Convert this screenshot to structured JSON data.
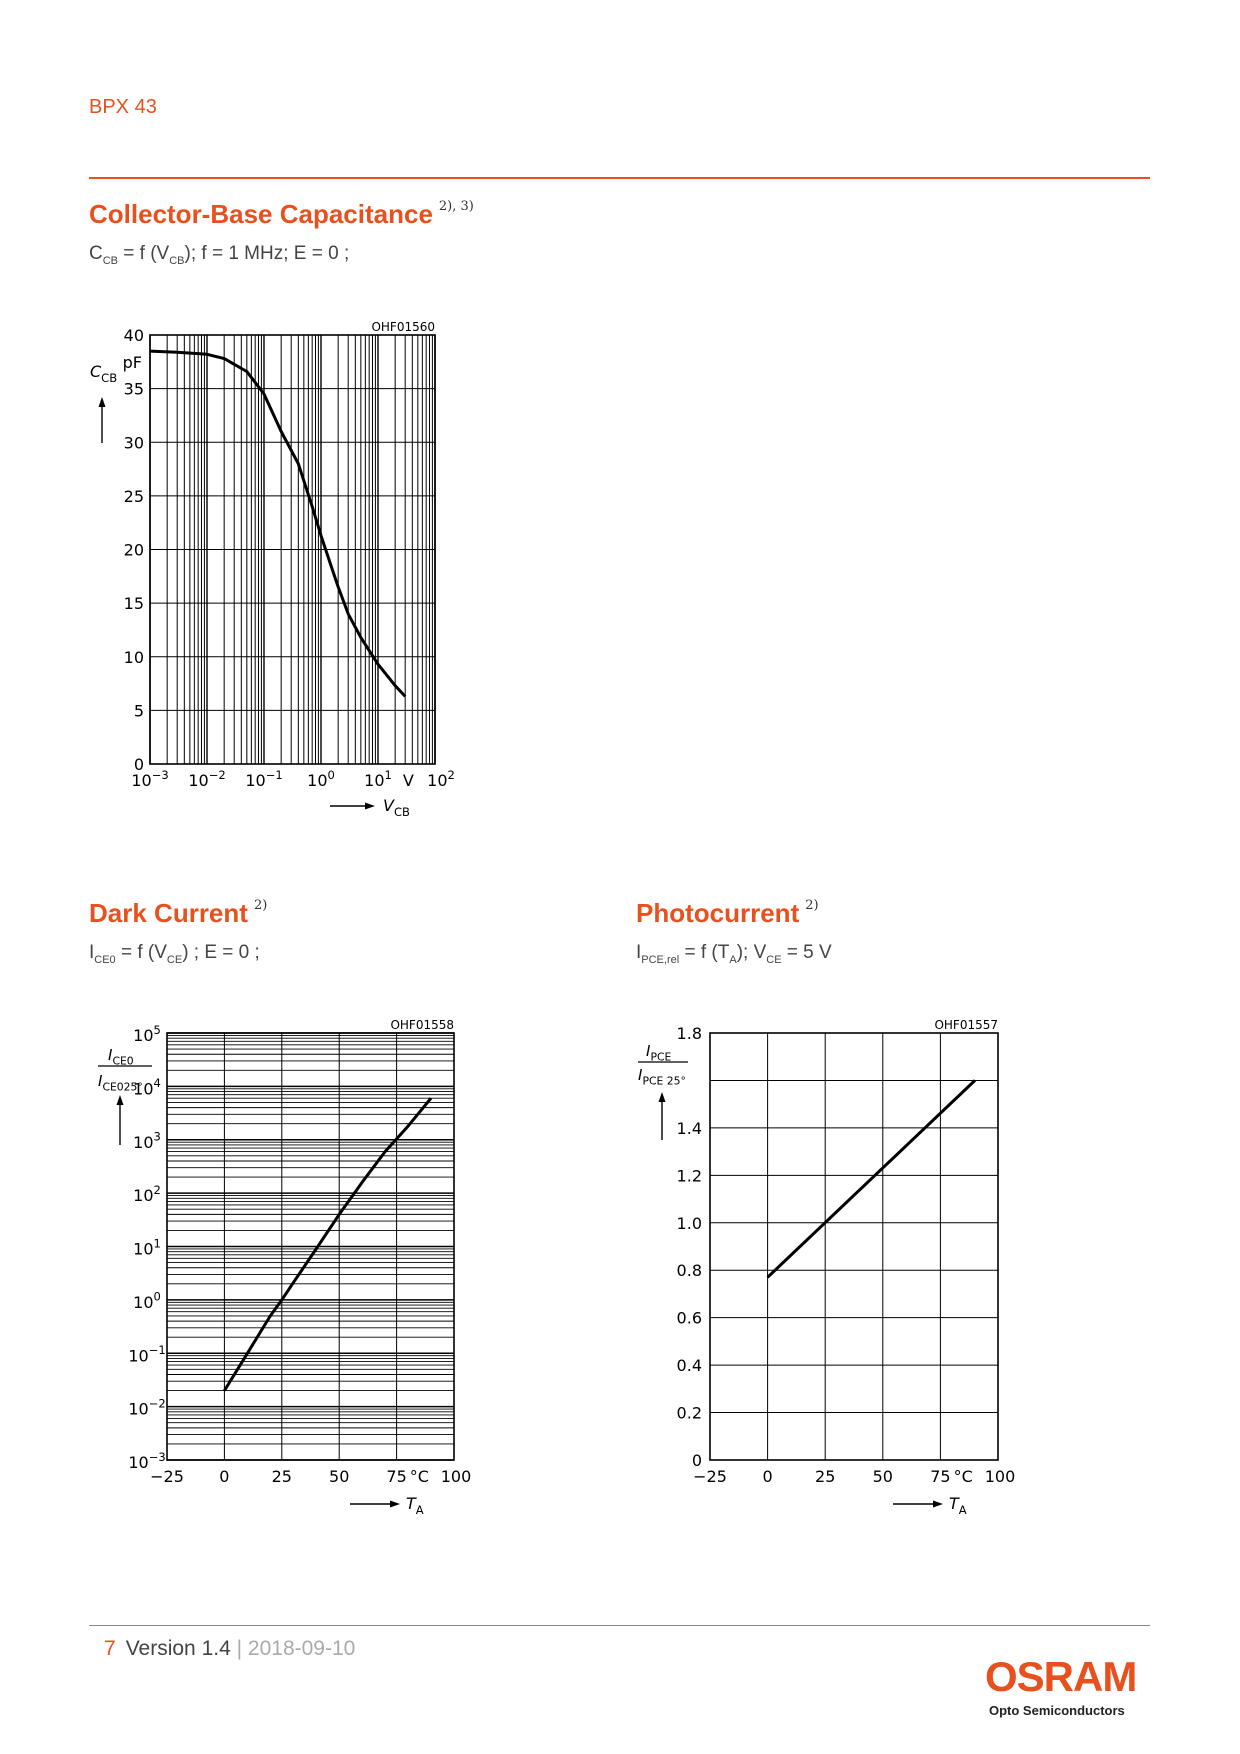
{
  "header": {
    "doc_title": "BPX 43"
  },
  "sections": {
    "cap": {
      "title": "Collector-Base Capacitance",
      "sup": "2), 3)",
      "formula": {
        "p1": "C",
        "s1": "CB",
        "p2": " = f (V",
        "s2": "CB",
        "p3": "); f = 1 MHz; E = 0 ;"
      }
    },
    "dark": {
      "title": "Dark Current",
      "sup": "2)",
      "formula": {
        "p1": "I",
        "s1": "CE0",
        "p2": " = f (V",
        "s2": "CE",
        "p3": ") ; E = 0 ;"
      }
    },
    "photo": {
      "title": "Photocurrent",
      "sup": "2)",
      "formula": {
        "p1": "I",
        "s1": "PCE,rel",
        "p2": " = f (T",
        "s2": "A",
        "p3": "); V",
        "s3": "CE",
        "p4": " = 5 V"
      }
    }
  },
  "chart_data": [
    {
      "id": "OHF01560",
      "type": "line",
      "xscale": "log",
      "xlim": [
        0.001,
        100
      ],
      "ylim": [
        0,
        40
      ],
      "ylabel_main": "C",
      "ylabel_sub": "CB",
      "yunit": "pF",
      "xlabel_main": "V",
      "xlabel_sub": "CB",
      "xunit": "V",
      "yticks": [
        "0",
        "5",
        "10",
        "15",
        "20",
        "25",
        "30",
        "35",
        "40"
      ],
      "xticks": [
        {
          "base": "10",
          "exp": "−3"
        },
        {
          "base": "10",
          "exp": "−2"
        },
        {
          "base": "10",
          "exp": "−1"
        },
        {
          "base": "10",
          "exp": "0"
        },
        {
          "base": "10",
          "exp": "1"
        },
        {
          "base": "10",
          "exp": "2"
        }
      ],
      "grid": true,
      "x": [
        0.001,
        0.003,
        0.01,
        0.02,
        0.05,
        0.1,
        0.2,
        0.4,
        0.7,
        1.0,
        1.5,
        2.0,
        3.0,
        5.0,
        10.0,
        20.0,
        30.0
      ],
      "y": [
        38.5,
        38.4,
        38.2,
        37.8,
        36.6,
        34.5,
        31.0,
        28.0,
        24.0,
        21.3,
        18.5,
        16.5,
        14.0,
        11.8,
        9.3,
        7.3,
        6.3
      ]
    },
    {
      "id": "OHF01558",
      "type": "line",
      "yscale": "log",
      "xlim": [
        -25,
        100
      ],
      "ylim": [
        0.001,
        100000
      ],
      "ylabel_num_main": "I",
      "ylabel_num_sub": "CE0",
      "ylabel_den_main": "I",
      "ylabel_den_sub": "CE025°",
      "xlabel_main": "T",
      "xlabel_sub": "A",
      "xunit": "°C",
      "xticks": [
        "−25",
        "0",
        "25",
        "50",
        "75",
        "100"
      ],
      "yticks": [
        {
          "base": "10",
          "exp": "−3"
        },
        {
          "base": "10",
          "exp": "−2"
        },
        {
          "base": "10",
          "exp": "−1"
        },
        {
          "base": "10",
          "exp": "0"
        },
        {
          "base": "10",
          "exp": "1"
        },
        {
          "base": "10",
          "exp": "2"
        },
        {
          "base": "10",
          "exp": "3"
        },
        {
          "base": "10",
          "exp": "4"
        },
        {
          "base": "10",
          "exp": "5"
        }
      ],
      "grid": true,
      "x": [
        0,
        10,
        20,
        25,
        30,
        40,
        50,
        60,
        70,
        80,
        90
      ],
      "y": [
        0.02,
        0.1,
        0.5,
        1.0,
        2.1,
        9.0,
        40,
        160,
        600,
        1800,
        6000
      ]
    },
    {
      "id": "OHF01557",
      "type": "line",
      "xlim": [
        -25,
        100
      ],
      "ylim": [
        0,
        1.8
      ],
      "ylabel_num_main": "I",
      "ylabel_num_sub": "PCE",
      "ylabel_den_main": "I",
      "ylabel_den_sub": "PCE 25°",
      "xlabel_main": "T",
      "xlabel_sub": "A",
      "xunit": "°C",
      "xticks": [
        "−25",
        "0",
        "25",
        "50",
        "75",
        "100"
      ],
      "yticks": [
        "0",
        "0.2",
        "0.4",
        "0.6",
        "0.8",
        "1.0",
        "1.2",
        "1.4",
        "1.8"
      ],
      "grid": true,
      "x": [
        0,
        90
      ],
      "y": [
        0.77,
        1.6
      ]
    }
  ],
  "footer": {
    "page": "7",
    "version": "Version 1.4",
    "separator": "|",
    "date": "2018-09-10"
  },
  "logo": {
    "name": "OSRAM",
    "sub": "Opto Semiconductors"
  },
  "colors": {
    "accent": "#e8501d",
    "text": "#333333"
  }
}
